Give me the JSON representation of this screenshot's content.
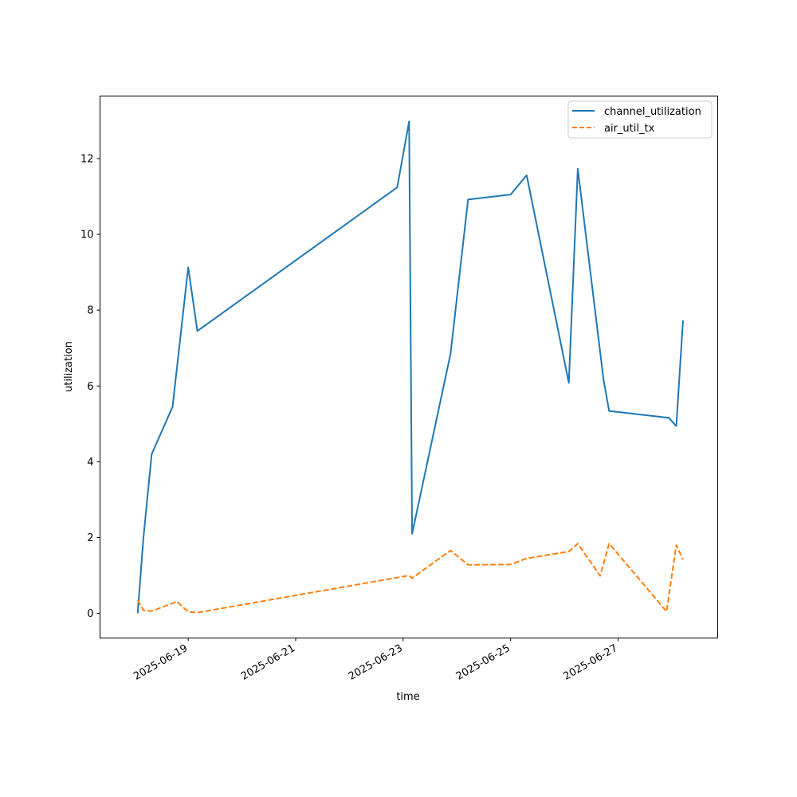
{
  "chart_data": {
    "type": "line",
    "xlabel": "time",
    "ylabel": "utilization",
    "x_ticks": [
      "2025-06-19",
      "2025-06-21",
      "2025-06-23",
      "2025-06-25",
      "2025-06-27"
    ],
    "y_ticks": [
      0,
      2,
      4,
      6,
      8,
      10,
      12
    ],
    "xlim": [
      "2025-06-17T08:36",
      "2025-06-28T20:30"
    ],
    "ylim": [
      -0.65,
      13.65
    ],
    "grid": false,
    "legend_position": "top-right",
    "series": [
      {
        "name": "channel_utilization",
        "color": "#1f77b4",
        "dash": "solid",
        "points": [
          [
            "2025-06-18T01:25",
            0.0
          ],
          [
            "2025-06-18T04:00",
            2.0
          ],
          [
            "2025-06-18T07:40",
            4.2
          ],
          [
            "2025-06-18T17:00",
            5.45
          ],
          [
            "2025-06-19T00:00",
            9.13
          ],
          [
            "2025-06-19T04:05",
            7.45
          ],
          [
            "2025-06-22T21:20",
            11.24
          ],
          [
            "2025-06-23T02:40",
            12.98
          ],
          [
            "2025-06-23T04:00",
            2.1
          ],
          [
            "2025-06-23T21:10",
            6.85
          ],
          [
            "2025-06-24T05:00",
            10.92
          ],
          [
            "2025-06-25T00:00",
            11.05
          ],
          [
            "2025-06-25T07:10",
            11.56
          ],
          [
            "2025-06-26T02:00",
            6.08
          ],
          [
            "2025-06-26T06:00",
            11.73
          ],
          [
            "2025-06-26T17:30",
            6.17
          ],
          [
            "2025-06-26T20:00",
            5.34
          ],
          [
            "2025-06-27T22:40",
            5.16
          ],
          [
            "2025-06-28T02:00",
            4.94
          ],
          [
            "2025-06-28T05:00",
            7.73
          ]
        ]
      },
      {
        "name": "air_util_tx",
        "color": "#ff7f0e",
        "dash": "dashed",
        "points": [
          [
            "2025-06-18T01:25",
            0.35
          ],
          [
            "2025-06-18T04:00",
            0.08
          ],
          [
            "2025-06-18T07:40",
            0.06
          ],
          [
            "2025-06-18T19:00",
            0.31
          ],
          [
            "2025-06-19T00:00",
            0.04
          ],
          [
            "2025-06-19T04:05",
            0.02
          ],
          [
            "2025-06-23T02:40",
            1.0
          ],
          [
            "2025-06-23T04:00",
            0.93
          ],
          [
            "2025-06-23T21:10",
            1.66
          ],
          [
            "2025-06-24T05:00",
            1.28
          ],
          [
            "2025-06-25T00:00",
            1.29
          ],
          [
            "2025-06-25T07:10",
            1.45
          ],
          [
            "2025-06-26T02:00",
            1.63
          ],
          [
            "2025-06-26T06:00",
            1.84
          ],
          [
            "2025-06-26T16:00",
            0.99
          ],
          [
            "2025-06-26T20:00",
            1.84
          ],
          [
            "2025-06-27T21:40",
            0.05
          ],
          [
            "2025-06-28T02:00",
            1.8
          ],
          [
            "2025-06-28T05:00",
            1.42
          ]
        ]
      }
    ]
  }
}
